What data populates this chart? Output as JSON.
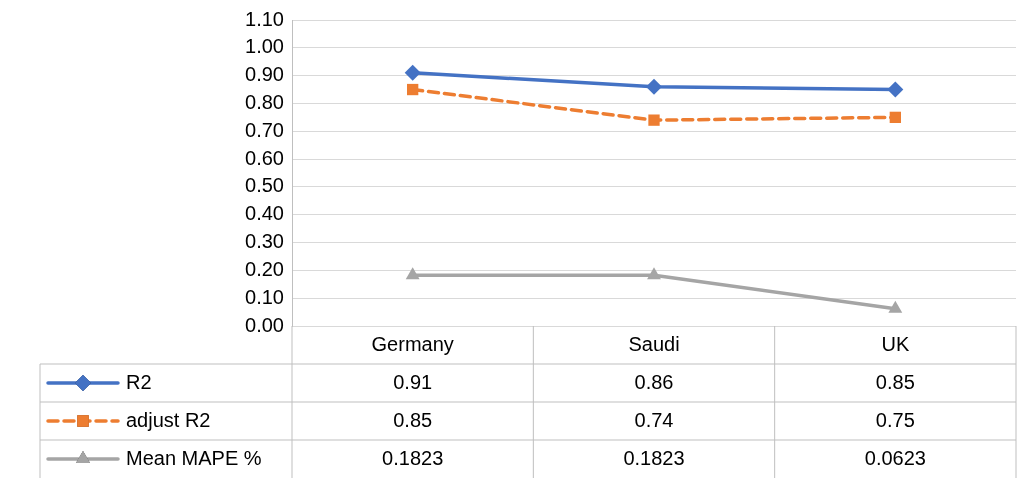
{
  "chart_data": {
    "type": "line",
    "categories": [
      "Germany",
      "Saudi",
      "UK"
    ],
    "series": [
      {
        "name": "R2",
        "color": "#4472c4",
        "marker": "diamond",
        "line_style": "solid",
        "values": [
          0.91,
          0.86,
          0.85
        ]
      },
      {
        "name": "adjust R2",
        "color": "#ed7d31",
        "marker": "square",
        "line_style": "dashed",
        "values": [
          0.85,
          0.74,
          0.75
        ]
      },
      {
        "name": "Mean MAPE %",
        "color": "#a5a5a5",
        "marker": "triangle",
        "line_style": "solid",
        "values": [
          0.1823,
          0.1823,
          0.0623
        ]
      }
    ],
    "ylim": [
      0,
      1.1
    ],
    "yticks": [
      {
        "value": 0,
        "label": "0.00"
      },
      {
        "value": 0.1,
        "label": "0.10"
      },
      {
        "value": 0.2,
        "label": "0.20"
      },
      {
        "value": 0.3,
        "label": "0.30"
      },
      {
        "value": 0.4,
        "label": "0.40"
      },
      {
        "value": 0.5,
        "label": "0.50"
      },
      {
        "value": 0.6,
        "label": "0.60"
      },
      {
        "value": 0.7,
        "label": "0.70"
      },
      {
        "value": 0.8,
        "label": "0.80"
      },
      {
        "value": 0.9,
        "label": "0.90"
      },
      {
        "value": 1,
        "label": "1.00"
      },
      {
        "value": 1.1,
        "label": "1.10"
      }
    ],
    "grid": "y",
    "legend": "bottom left",
    "data_labels": true
  }
}
